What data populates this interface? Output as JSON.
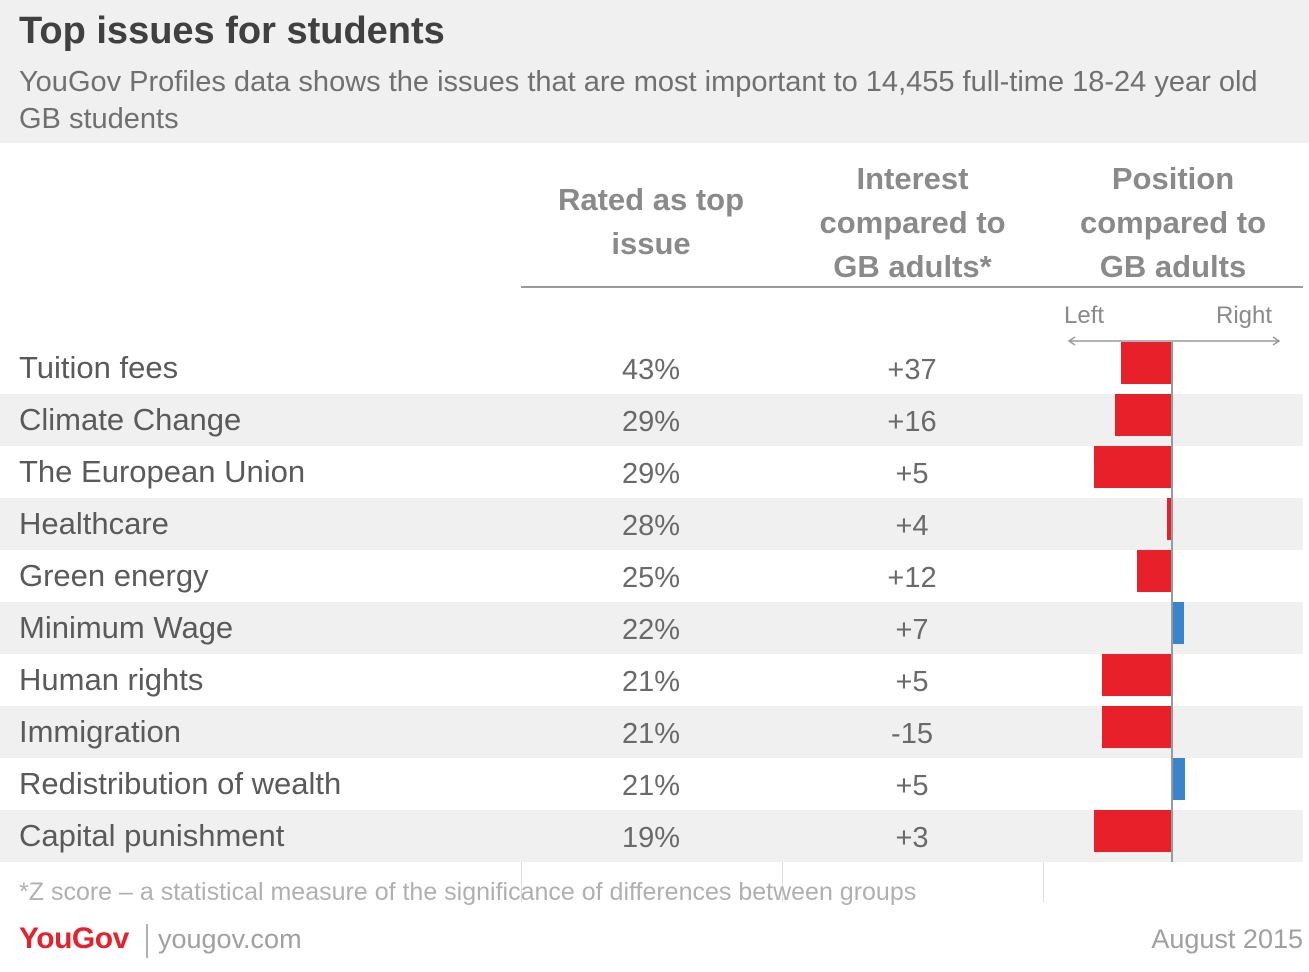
{
  "title": "Top issues for students",
  "subtitle": "YouGov Profiles data shows the issues that are most important to 14,455 full-time 18-24 year old GB students",
  "columns": {
    "rated": "Rated as top issue",
    "interest": "Interest compared to GB adults*",
    "position": "Position compared to GB adults"
  },
  "scale": {
    "left": "Left",
    "right": "Right"
  },
  "colors": {
    "left": "#e8202a",
    "right": "#3a84cc",
    "axis": "#9a9a9a"
  },
  "chart_data": {
    "type": "table",
    "title": "Top issues for students",
    "columns": [
      "Rated as top issue",
      "Interest compared to GB adults*",
      "Position compared to GB adults"
    ],
    "rows": [
      {
        "issue": "Tuition fees",
        "rated": "43%",
        "interest": "+37",
        "position": -51
      },
      {
        "issue": "Climate Change",
        "rated": "29%",
        "interest": "+16",
        "position": -57
      },
      {
        "issue": "The European Union",
        "rated": "29%",
        "interest": "+5",
        "position": -78
      },
      {
        "issue": "Healthcare",
        "rated": "28%",
        "interest": "+4",
        "position": -5
      },
      {
        "issue": "Green energy",
        "rated": "25%",
        "interest": "+12",
        "position": -35
      },
      {
        "issue": "Minimum Wage",
        "rated": "22%",
        "interest": "+7",
        "position": 12
      },
      {
        "issue": "Human rights",
        "rated": "21%",
        "interest": "+5",
        "position": -70
      },
      {
        "issue": "Immigration",
        "rated": "21%",
        "interest": "-15",
        "position": -70
      },
      {
        "issue": "Redistribution of wealth",
        "rated": "21%",
        "interest": "+5",
        "position": 13
      },
      {
        "issue": "Capital punishment",
        "rated": "19%",
        "interest": "+3",
        "position": -78
      }
    ],
    "position_scale": {
      "left": "Left",
      "right": "Right",
      "range": [
        -100,
        100
      ]
    }
  },
  "footnote": "*Z score – a statistical measure of the significance of differences between groups",
  "footer": {
    "logo": "YouGov",
    "site": "yougov.com",
    "date": "August 2015"
  }
}
